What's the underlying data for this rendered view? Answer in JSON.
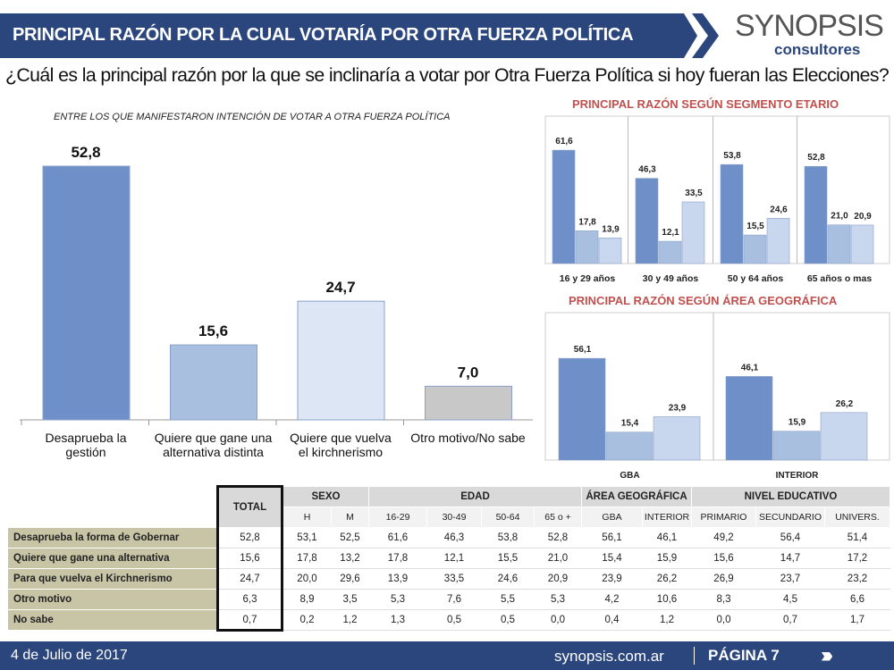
{
  "header": {
    "title": "PRINCIPAL RAZÓN POR LA CUAL VOTARÍA POR OTRA FUERZA POLÍTICA",
    "logo_main": "SYNOPSIS",
    "logo_sub": "consultores"
  },
  "question": "¿Cuál es la principal razón por la que se inclinaría a votar por Otra Fuerza Política si hoy fueran las Elecciones?",
  "chart_data": [
    {
      "type": "bar",
      "subtitle": "ENTRE LOS QUE MANIFESTARON INTENCIÓN DE VOTAR A OTRA FUERZA POLÍTICA",
      "categories": [
        "Desaprueba la gestión",
        "Quiere que gane una alternativa distinta",
        "Quiere que vuelva el kirchnerismo",
        "Otro motivo/No sabe"
      ],
      "values": [
        52.8,
        15.6,
        24.7,
        7.0
      ],
      "labels": [
        "52,8",
        "15,6",
        "24,7",
        "7,0"
      ],
      "colors": [
        "#6f8fc9",
        "#a9bfe0",
        "#dde6f4",
        "#c8c8c8"
      ],
      "ylim": [
        0,
        55
      ]
    },
    {
      "type": "bar",
      "title": "PRINCIPAL RAZÓN SEGÚN SEGMENTO ETARIO",
      "categories": [
        "16 y 29 años",
        "30 y 49 años",
        "50 y 64 años",
        "65 años o mas"
      ],
      "series": [
        {
          "values": [
            61.6,
            46.3,
            53.8,
            52.8
          ],
          "labels": [
            "61,6",
            "46,3",
            "53,8",
            "52,8"
          ]
        },
        {
          "values": [
            17.8,
            12.1,
            15.5,
            21.0
          ],
          "labels": [
            "17,8",
            "12,1",
            "15,5",
            "21,0"
          ]
        },
        {
          "values": [
            13.9,
            33.5,
            24.6,
            20.9
          ],
          "labels": [
            "13,9",
            "33,5",
            "24,6",
            "20,9"
          ]
        }
      ],
      "colors": [
        "#6f8fc9",
        "#a9bfe0",
        "#c9d7ee"
      ]
    },
    {
      "type": "bar",
      "title": "PRINCIPAL RAZÓN SEGÚN ÁREA GEOGRÁFICA",
      "categories": [
        "GBA",
        "INTERIOR"
      ],
      "series": [
        {
          "values": [
            56.1,
            46.1
          ],
          "labels": [
            "56,1",
            "46,1"
          ]
        },
        {
          "values": [
            15.4,
            15.9
          ],
          "labels": [
            "15,4",
            "15,9"
          ]
        },
        {
          "values": [
            23.9,
            26.2
          ],
          "labels": [
            "23,9",
            "26,2"
          ]
        }
      ],
      "colors": [
        "#6f8fc9",
        "#a9bfe0",
        "#c9d7ee"
      ]
    }
  ],
  "table": {
    "total_label": "TOTAL",
    "groups": [
      {
        "label": "SEXO",
        "span": 2
      },
      {
        "label": "EDAD",
        "span": 4
      },
      {
        "label": "ÁREA GEOGRÁFICA",
        "span": 2
      },
      {
        "label": "NIVEL EDUCATIVO",
        "span": 3
      }
    ],
    "subheaders": [
      "H",
      "M",
      "16-29",
      "30-49",
      "50-64",
      "65 o +",
      "GBA",
      "INTERIOR",
      "PRIMARIO",
      "SECUNDARIO",
      "UNIVERS."
    ],
    "rows": [
      {
        "label": "Desaprueba la forma de Gobernar",
        "values": [
          "52,8",
          "53,1",
          "52,5",
          "61,6",
          "46,3",
          "53,8",
          "52,8",
          "56,1",
          "46,1",
          "49,2",
          "56,4",
          "51,4"
        ]
      },
      {
        "label": "Quiere que gane una alternativa",
        "values": [
          "15,6",
          "17,8",
          "13,2",
          "17,8",
          "12,1",
          "15,5",
          "21,0",
          "15,4",
          "15,9",
          "15,6",
          "14,7",
          "17,2"
        ]
      },
      {
        "label": "Para que vuelva el Kirchnerismo",
        "values": [
          "24,7",
          "20,0",
          "29,6",
          "13,9",
          "33,5",
          "24,6",
          "20,9",
          "23,9",
          "26,2",
          "26,9",
          "23,7",
          "23,2"
        ]
      },
      {
        "label": "Otro motivo",
        "values": [
          "6,3",
          "8,9",
          "3,5",
          "5,3",
          "7,6",
          "5,5",
          "5,3",
          "4,2",
          "10,6",
          "8,3",
          "4,5",
          "6,6"
        ]
      },
      {
        "label": "No sabe",
        "values": [
          "0,7",
          "0,2",
          "1,2",
          "1,3",
          "0,5",
          "0,5",
          "0,0",
          "0,4",
          "1,2",
          "0,0",
          "0,7",
          "1,7"
        ]
      }
    ]
  },
  "footer": {
    "date": "4 de Julio de 2017",
    "site": "synopsis.com.ar",
    "page": "PÁGINA 7"
  }
}
